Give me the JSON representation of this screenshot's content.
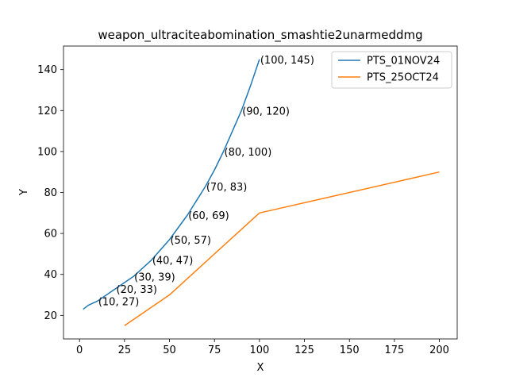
{
  "chart_data": {
    "type": "line",
    "title": "weapon_ultraciteabomination_smashtie2unarmeddmg",
    "xlabel": "X",
    "ylabel": "Y",
    "xlim": [
      -8.9,
      209.9
    ],
    "ylim": [
      8.5,
      151.5
    ],
    "xticks": [
      0,
      25,
      50,
      75,
      100,
      125,
      150,
      175,
      200
    ],
    "yticks": [
      20,
      40,
      60,
      80,
      100,
      120,
      140
    ],
    "legend_position": "top-right",
    "series": [
      {
        "name": "PTS_01NOV24",
        "color": "#1f77b4",
        "x": [
          2,
          5,
          10,
          15,
          20,
          25,
          30,
          35,
          40,
          45,
          50,
          55,
          60,
          65,
          70,
          75,
          80,
          85,
          90,
          95,
          100
        ],
        "y": [
          23,
          25,
          27,
          30,
          33,
          36,
          39,
          43,
          47,
          52,
          57,
          63,
          69,
          76,
          83,
          91,
          100,
          110,
          120,
          132,
          145
        ]
      },
      {
        "name": "PTS_25OCT24",
        "color": "#ff7f0e",
        "x": [
          25,
          50,
          100,
          200
        ],
        "y": [
          15,
          30,
          70,
          90
        ]
      }
    ],
    "annotations": [
      {
        "x": 10,
        "y": 27,
        "text": "(10, 27)"
      },
      {
        "x": 20,
        "y": 33,
        "text": "(20, 33)"
      },
      {
        "x": 30,
        "y": 39,
        "text": "(30, 39)"
      },
      {
        "x": 40,
        "y": 47,
        "text": "(40, 47)"
      },
      {
        "x": 50,
        "y": 57,
        "text": "(50, 57)"
      },
      {
        "x": 60,
        "y": 69,
        "text": "(60, 69)"
      },
      {
        "x": 70,
        "y": 83,
        "text": "(70, 83)"
      },
      {
        "x": 80,
        "y": 100,
        "text": "(80, 100)"
      },
      {
        "x": 90,
        "y": 120,
        "text": "(90, 120)"
      },
      {
        "x": 100,
        "y": 145,
        "text": "(100, 145)"
      }
    ]
  }
}
